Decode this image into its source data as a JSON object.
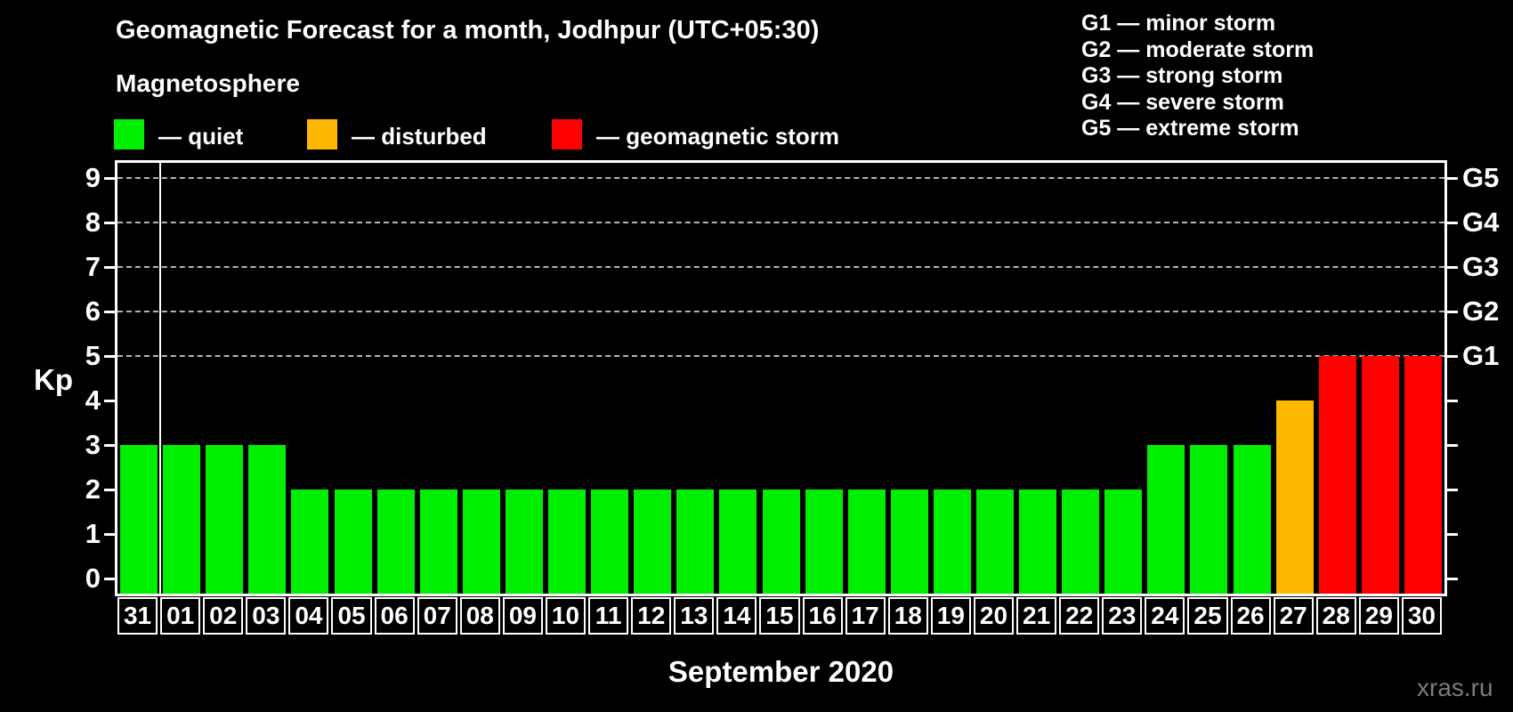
{
  "title": "Geomagnetic Forecast for a month, Jodhpur (UTC+05:30)",
  "legend_title": "Magnetosphere",
  "legend_items": [
    {
      "name": "quiet",
      "label": "— quiet",
      "color": "#00ef00"
    },
    {
      "name": "disturbed",
      "label": "— disturbed",
      "color": "#fdb800"
    },
    {
      "name": "storm",
      "label": "— geomagnetic storm",
      "color": "#fe0000"
    }
  ],
  "g_scale_legend": [
    "G1 — minor storm",
    "G2 — moderate storm",
    "G3 — strong storm",
    "G4 — severe storm",
    "G5 — extreme storm"
  ],
  "watermark": "xras.ru",
  "chart_data": {
    "type": "bar",
    "title": "Geomagnetic Forecast for a month, Jodhpur (UTC+05:30)",
    "xlabel": "September 2020",
    "ylabel": "Kp",
    "ylim": [
      0,
      9
    ],
    "yticks": [
      0,
      1,
      2,
      3,
      4,
      5,
      6,
      7,
      8,
      9
    ],
    "gridlines_at": [
      5,
      6,
      7,
      8,
      9
    ],
    "grid": "dashed horizontal lines at Kp 5-9 only",
    "legend_position": "top-left",
    "right_axis_labels": [
      {
        "label": "G1",
        "kp": 5
      },
      {
        "label": "G2",
        "kp": 6
      },
      {
        "label": "G3",
        "kp": 7
      },
      {
        "label": "G4",
        "kp": 8
      },
      {
        "label": "G5",
        "kp": 9
      }
    ],
    "categories": [
      "31",
      "01",
      "02",
      "03",
      "04",
      "05",
      "06",
      "07",
      "08",
      "09",
      "10",
      "11",
      "12",
      "13",
      "14",
      "15",
      "16",
      "17",
      "18",
      "19",
      "20",
      "21",
      "22",
      "23",
      "24",
      "25",
      "26",
      "27",
      "28",
      "29",
      "30"
    ],
    "values": [
      3,
      3,
      3,
      3,
      2,
      2,
      2,
      2,
      2,
      2,
      2,
      2,
      2,
      2,
      2,
      2,
      2,
      2,
      2,
      2,
      2,
      2,
      2,
      2,
      3,
      3,
      3,
      4,
      5,
      5,
      5
    ],
    "month_separator_after_index": 0,
    "colors": {
      "quiet": "#00ef00",
      "disturbed": "#fdb800",
      "storm": "#fe0000"
    },
    "color_rule": {
      "quiet_kp_max": 3,
      "disturbed_kp_max": 4
    }
  }
}
